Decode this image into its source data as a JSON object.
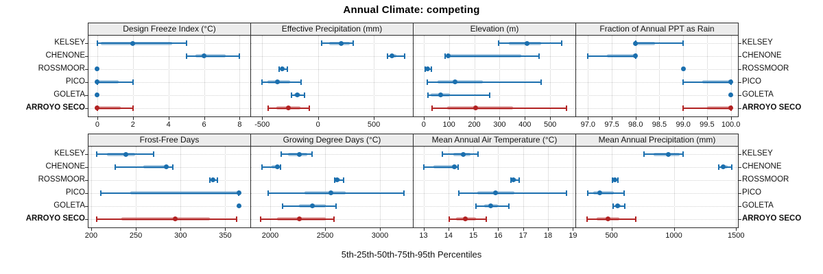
{
  "title": "Annual Climate: competing",
  "caption": "5th-25th-50th-75th-95th Percentiles",
  "sites": [
    "KELSEY",
    "CHENONE",
    "ROSSMOOR",
    "PICO",
    "GOLETA",
    "ARROYO SECO"
  ],
  "highlight_site": "ARROYO SECO",
  "colors": {
    "series": "#1b6fae",
    "highlight": "#b22222",
    "strip_bg": "#ececec",
    "grid": "#c8c8c8",
    "border": "#2b2b2b"
  },
  "chart_data": [
    {
      "type": "dotplot-percentiles",
      "slug": "design-freeze-index",
      "title": "Design Freeze Index (°C)",
      "xlim": [
        -0.5,
        8.6
      ],
      "ticks": [
        {
          "v": 0,
          "label": "0"
        },
        {
          "v": 2,
          "label": "2"
        },
        {
          "v": 4,
          "label": "4"
        },
        {
          "v": 6,
          "label": "6"
        },
        {
          "v": 8,
          "label": "8"
        }
      ],
      "series": [
        {
          "site": "KELSEY",
          "p": [
            0,
            0.2,
            2,
            4.2,
            5
          ]
        },
        {
          "site": "CHENONE",
          "p": [
            5,
            5.5,
            6,
            7.2,
            8
          ]
        },
        {
          "site": "ROSSMOOR",
          "p": [
            0,
            0,
            0,
            0,
            0
          ]
        },
        {
          "site": "PICO",
          "p": [
            0,
            0,
            0,
            1.2,
            2
          ]
        },
        {
          "site": "GOLETA",
          "p": [
            0,
            0,
            0,
            0,
            0
          ]
        },
        {
          "site": "ARROYO SECO",
          "p": [
            0,
            0,
            0,
            1.3,
            2
          ]
        }
      ]
    },
    {
      "type": "dotplot-percentiles",
      "slug": "effective-precipitation",
      "title": "Effective Precipitation (mm)",
      "xlim": [
        -600,
        850
      ],
      "ticks": [
        {
          "v": -500,
          "label": "-500"
        },
        {
          "v": 0,
          "label": "0"
        },
        {
          "v": 500,
          "label": "500"
        }
      ],
      "series": [
        {
          "site": "KELSEY",
          "p": [
            35,
            100,
            210,
            285,
            315
          ]
        },
        {
          "site": "CHENONE",
          "p": [
            620,
            640,
            660,
            700,
            775
          ]
        },
        {
          "site": "ROSSMOOR",
          "p": [
            -350,
            -335,
            -320,
            -300,
            -275
          ]
        },
        {
          "site": "PICO",
          "p": [
            -500,
            -450,
            -365,
            -250,
            -150
          ]
        },
        {
          "site": "GOLETA",
          "p": [
            -235,
            -210,
            -185,
            -155,
            -120
          ]
        },
        {
          "site": "ARROYO SECO",
          "p": [
            -445,
            -370,
            -265,
            -160,
            -80
          ]
        }
      ]
    },
    {
      "type": "dotplot-percentiles",
      "slug": "elevation",
      "title": "Elevation (m)",
      "xlim": [
        -40,
        600
      ],
      "ticks": [
        {
          "v": 0,
          "label": "0"
        },
        {
          "v": 100,
          "label": "100"
        },
        {
          "v": 200,
          "label": "200"
        },
        {
          "v": 300,
          "label": "300"
        },
        {
          "v": 400,
          "label": "400"
        },
        {
          "v": 500,
          "label": "500"
        }
      ],
      "series": [
        {
          "site": "KELSEY",
          "p": [
            296,
            337,
            410,
            465,
            545
          ]
        },
        {
          "site": "CHENONE",
          "p": [
            85,
            92,
            97,
            385,
            455
          ]
        },
        {
          "site": "ROSSMOOR",
          "p": [
            5,
            10,
            16,
            22,
            30
          ]
        },
        {
          "site": "PICO",
          "p": [
            13,
            54,
            125,
            235,
            465
          ]
        },
        {
          "site": "GOLETA",
          "p": [
            16,
            27,
            67,
            103,
            260
          ]
        },
        {
          "site": "ARROYO SECO",
          "p": [
            33,
            94,
            206,
            353,
            565
          ]
        }
      ]
    },
    {
      "type": "dotplot-percentiles",
      "slug": "fraction-ppt-rain",
      "title": "Fraction of Annual PPT as Rain",
      "xlim": [
        96.75,
        100.15
      ],
      "ticks": [
        {
          "v": 97,
          "label": "97.0"
        },
        {
          "v": 97.5,
          "label": "97.5"
        },
        {
          "v": 98,
          "label": "98.0"
        },
        {
          "v": 98.5,
          "label": "98.5"
        },
        {
          "v": 99,
          "label": "99.0"
        },
        {
          "v": 99.5,
          "label": "99.5"
        },
        {
          "v": 100,
          "label": "100.0"
        }
      ],
      "series": [
        {
          "site": "KELSEY",
          "p": [
            98,
            98,
            98,
            98.4,
            99
          ]
        },
        {
          "site": "CHENONE",
          "p": [
            97,
            97.4,
            98,
            98,
            98
          ]
        },
        {
          "site": "ROSSMOOR",
          "p": [
            99,
            99,
            99,
            99,
            99
          ]
        },
        {
          "site": "PICO",
          "p": [
            99,
            99.4,
            100,
            100,
            100
          ]
        },
        {
          "site": "GOLETA",
          "p": [
            100,
            100,
            100,
            100,
            100
          ]
        },
        {
          "site": "ARROYO SECO",
          "p": [
            99,
            99.5,
            100,
            100,
            100
          ]
        }
      ]
    },
    {
      "type": "dotplot-percentiles",
      "slug": "frost-free-days",
      "title": "Frost-Free Days",
      "xlim": [
        197,
        378
      ],
      "ticks": [
        {
          "v": 200,
          "label": "200"
        },
        {
          "v": 250,
          "label": "250"
        },
        {
          "v": 300,
          "label": "300"
        },
        {
          "v": 350,
          "label": "350"
        }
      ],
      "series": [
        {
          "site": "KELSEY",
          "p": [
            206,
            218,
            239,
            249,
            270
          ]
        },
        {
          "site": "CHENONE",
          "p": [
            227,
            258,
            284,
            287,
            291
          ]
        },
        {
          "site": "ROSSMOOR",
          "p": [
            333,
            334,
            336,
            338,
            341
          ]
        },
        {
          "site": "PICO",
          "p": [
            211,
            244,
            365,
            365,
            365
          ]
        },
        {
          "site": "GOLETA",
          "p": [
            365,
            365,
            365,
            365,
            365
          ]
        },
        {
          "site": "ARROYO SECO",
          "p": [
            206,
            234,
            294,
            333,
            363
          ]
        }
      ]
    },
    {
      "type": "dotplot-percentiles",
      "slug": "growing-degree-days",
      "title": "Growing Degree Days (°C)",
      "xlim": [
        1825,
        3300
      ],
      "ticks": [
        {
          "v": 2000,
          "label": "2000"
        },
        {
          "v": 2500,
          "label": "2500"
        },
        {
          "v": 3000,
          "label": "3000"
        }
      ],
      "series": [
        {
          "site": "KELSEY",
          "p": [
            2098,
            2165,
            2265,
            2335,
            2380
          ]
        },
        {
          "site": "CHENONE",
          "p": [
            1927,
            2010,
            2066,
            2080,
            2093
          ]
        },
        {
          "site": "ROSSMOOR",
          "p": [
            2585,
            2600,
            2612,
            2640,
            2668
          ]
        },
        {
          "site": "PICO",
          "p": [
            1979,
            2312,
            2550,
            2685,
            3220
          ]
        },
        {
          "site": "GOLETA",
          "p": [
            2115,
            2260,
            2385,
            2505,
            2600
          ]
        },
        {
          "site": "ARROYO SECO",
          "p": [
            1910,
            2065,
            2265,
            2505,
            2580
          ]
        }
      ]
    },
    {
      "type": "dotplot-percentiles",
      "slug": "mean-annual-air-temperature",
      "title": "Mean Annual Air Temperature (°C)",
      "xlim": [
        12.6,
        19.1
      ],
      "ticks": [
        {
          "v": 13,
          "label": "13"
        },
        {
          "v": 14,
          "label": "14"
        },
        {
          "v": 15,
          "label": "15"
        },
        {
          "v": 16,
          "label": "16"
        },
        {
          "v": 17,
          "label": "17"
        },
        {
          "v": 18,
          "label": "18"
        },
        {
          "v": 19,
          "label": "19"
        }
      ],
      "series": [
        {
          "site": "KELSEY",
          "p": [
            13.76,
            14.2,
            14.6,
            14.9,
            15.2
          ]
        },
        {
          "site": "CHENONE",
          "p": [
            13.0,
            13.4,
            14.25,
            14.35,
            14.4
          ]
        },
        {
          "site": "ROSSMOOR",
          "p": [
            16.5,
            16.55,
            16.6,
            16.72,
            16.83
          ]
        },
        {
          "site": "PICO",
          "p": [
            14.42,
            15.15,
            15.9,
            16.65,
            18.75
          ]
        },
        {
          "site": "GOLETA",
          "p": [
            15.12,
            15.45,
            15.71,
            16.0,
            16.42
          ]
        },
        {
          "site": "ARROYO SECO",
          "p": [
            14.04,
            14.3,
            14.67,
            15.1,
            15.51
          ]
        }
      ]
    },
    {
      "type": "dotplot-percentiles",
      "slug": "mean-annual-precipitation",
      "title": "Mean Annual Precipitation (mm)",
      "xlim": [
        215,
        1515
      ],
      "ticks": [
        {
          "v": 500,
          "label": "500"
        },
        {
          "v": 1000,
          "label": "1000"
        },
        {
          "v": 1500,
          "label": "1500"
        }
      ],
      "series": [
        {
          "site": "KELSEY",
          "p": [
            760,
            835,
            958,
            1045,
            1073
          ]
        },
        {
          "site": "CHENONE",
          "p": [
            1360,
            1375,
            1397,
            1430,
            1465
          ]
        },
        {
          "site": "ROSSMOOR",
          "p": [
            509,
            517,
            526,
            540,
            553
          ]
        },
        {
          "site": "PICO",
          "p": [
            307,
            350,
            403,
            520,
            600
          ]
        },
        {
          "site": "GOLETA",
          "p": [
            513,
            530,
            546,
            575,
            604
          ]
        },
        {
          "site": "ARROYO SECO",
          "p": [
            303,
            380,
            471,
            560,
            692
          ]
        }
      ]
    }
  ]
}
